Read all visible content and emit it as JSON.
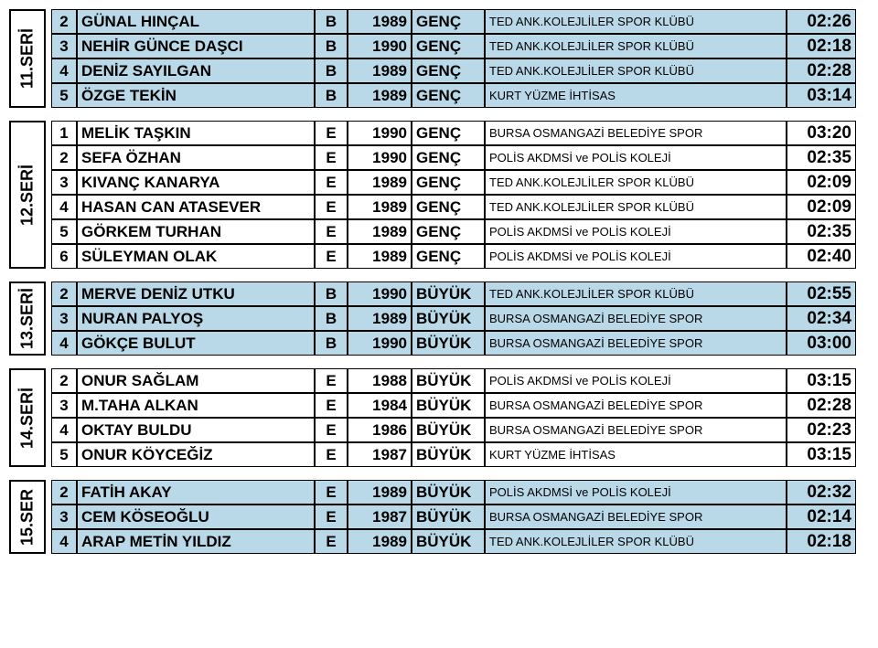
{
  "colors": {
    "blue": "#b9d9e8",
    "white": "#ffffff"
  },
  "series": [
    {
      "label": "11.SERİ",
      "bg": "blue",
      "rows": [
        {
          "n": "2",
          "name": "GÜNAL HINÇAL",
          "s": "B",
          "y": "1989",
          "cat": "GENÇ",
          "club": "TED ANK.KOLEJLİLER SPOR KLÜBÜ",
          "t": "02:26"
        },
        {
          "n": "3",
          "name": "NEHİR GÜNCE DAŞCI",
          "s": "B",
          "y": "1990",
          "cat": "GENÇ",
          "club": "TED ANK.KOLEJLİLER SPOR KLÜBÜ",
          "t": "02:18"
        },
        {
          "n": "4",
          "name": "DENİZ SAYILGAN",
          "s": "B",
          "y": "1989",
          "cat": "GENÇ",
          "club": "TED ANK.KOLEJLİLER SPOR KLÜBÜ",
          "t": "02:28"
        },
        {
          "n": "5",
          "name": "ÖZGE TEKİN",
          "s": "B",
          "y": "1989",
          "cat": "GENÇ",
          "club": "KURT YÜZME İHTİSAS",
          "t": "03:14"
        }
      ]
    },
    {
      "label": "12.SERİ",
      "bg": "white",
      "rows": [
        {
          "n": "1",
          "name": "MELİK TAŞKIN",
          "s": "E",
          "y": "1990",
          "cat": "GENÇ",
          "club": "BURSA OSMANGAZİ BELEDİYE SPOR",
          "t": "03:20"
        },
        {
          "n": "2",
          "name": "SEFA ÖZHAN",
          "s": "E",
          "y": "1990",
          "cat": "GENÇ",
          "club": "POLİS AKDMSİ ve POLİS KOLEJİ",
          "t": "02:35"
        },
        {
          "n": "3",
          "name": "KIVANÇ KANARYA",
          "s": "E",
          "y": "1989",
          "cat": "GENÇ",
          "club": "TED ANK.KOLEJLİLER SPOR KLÜBÜ",
          "t": "02:09"
        },
        {
          "n": "4",
          "name": "HASAN CAN ATASEVER",
          "s": "E",
          "y": "1989",
          "cat": "GENÇ",
          "club": "TED ANK.KOLEJLİLER SPOR KLÜBÜ",
          "t": "02:09"
        },
        {
          "n": "5",
          "name": "GÖRKEM TURHAN",
          "s": "E",
          "y": "1989",
          "cat": "GENÇ",
          "club": "POLİS AKDMSİ ve POLİS KOLEJİ",
          "t": "02:35"
        },
        {
          "n": "6",
          "name": "SÜLEYMAN OLAK",
          "s": "E",
          "y": "1989",
          "cat": "GENÇ",
          "club": "POLİS AKDMSİ ve POLİS KOLEJİ",
          "t": "02:40"
        }
      ]
    },
    {
      "label": "13.SERİ",
      "bg": "blue",
      "rows": [
        {
          "n": "2",
          "name": "MERVE DENİZ UTKU",
          "s": "B",
          "y": "1990",
          "cat": "BÜYÜK",
          "club": "TED ANK.KOLEJLİLER SPOR KLÜBÜ",
          "t": "02:55"
        },
        {
          "n": "3",
          "name": "NURAN PALYOŞ",
          "s": "B",
          "y": "1989",
          "cat": "BÜYÜK",
          "club": "BURSA OSMANGAZİ BELEDİYE SPOR",
          "t": "02:34"
        },
        {
          "n": "4",
          "name": "GÖKÇE BULUT",
          "s": "B",
          "y": "1990",
          "cat": "BÜYÜK",
          "club": "BURSA OSMANGAZİ BELEDİYE SPOR",
          "t": "03:00"
        }
      ]
    },
    {
      "label": "14.SERİ",
      "bg": "white",
      "rows": [
        {
          "n": "2",
          "name": "ONUR SAĞLAM",
          "s": "E",
          "y": "1988",
          "cat": "BÜYÜK",
          "club": "POLİS AKDMSİ ve POLİS KOLEJİ",
          "t": "03:15"
        },
        {
          "n": "3",
          "name": "M.TAHA ALKAN",
          "s": "E",
          "y": "1984",
          "cat": "BÜYÜK",
          "club": "BURSA OSMANGAZİ BELEDİYE SPOR",
          "t": "02:28"
        },
        {
          "n": "4",
          "name": "OKTAY BULDU",
          "s": "E",
          "y": "1986",
          "cat": "BÜYÜK",
          "club": "BURSA OSMANGAZİ BELEDİYE SPOR",
          "t": "02:23"
        },
        {
          "n": "5",
          "name": "ONUR KÖYCEĞİZ",
          "s": "E",
          "y": "1987",
          "cat": "BÜYÜK",
          "club": "KURT YÜZME İHTİSAS",
          "t": "03:15"
        }
      ]
    },
    {
      "label": "15.SER",
      "bg": "blue",
      "rows": [
        {
          "n": "2",
          "name": "FATİH AKAY",
          "s": "E",
          "y": "1989",
          "cat": "BÜYÜK",
          "club": "POLİS AKDMSİ ve POLİS KOLEJİ",
          "t": "02:32"
        },
        {
          "n": "3",
          "name": "CEM KÖSEOĞLU",
          "s": "E",
          "y": "1987",
          "cat": "BÜYÜK",
          "club": "BURSA OSMANGAZİ BELEDİYE SPOR",
          "t": "02:14"
        },
        {
          "n": "4",
          "name": "ARAP METİN YILDIZ",
          "s": "E",
          "y": "1989",
          "cat": "BÜYÜK",
          "club": "TED ANK.KOLEJLİLER SPOR KLÜBÜ",
          "t": "02:18"
        }
      ]
    }
  ]
}
